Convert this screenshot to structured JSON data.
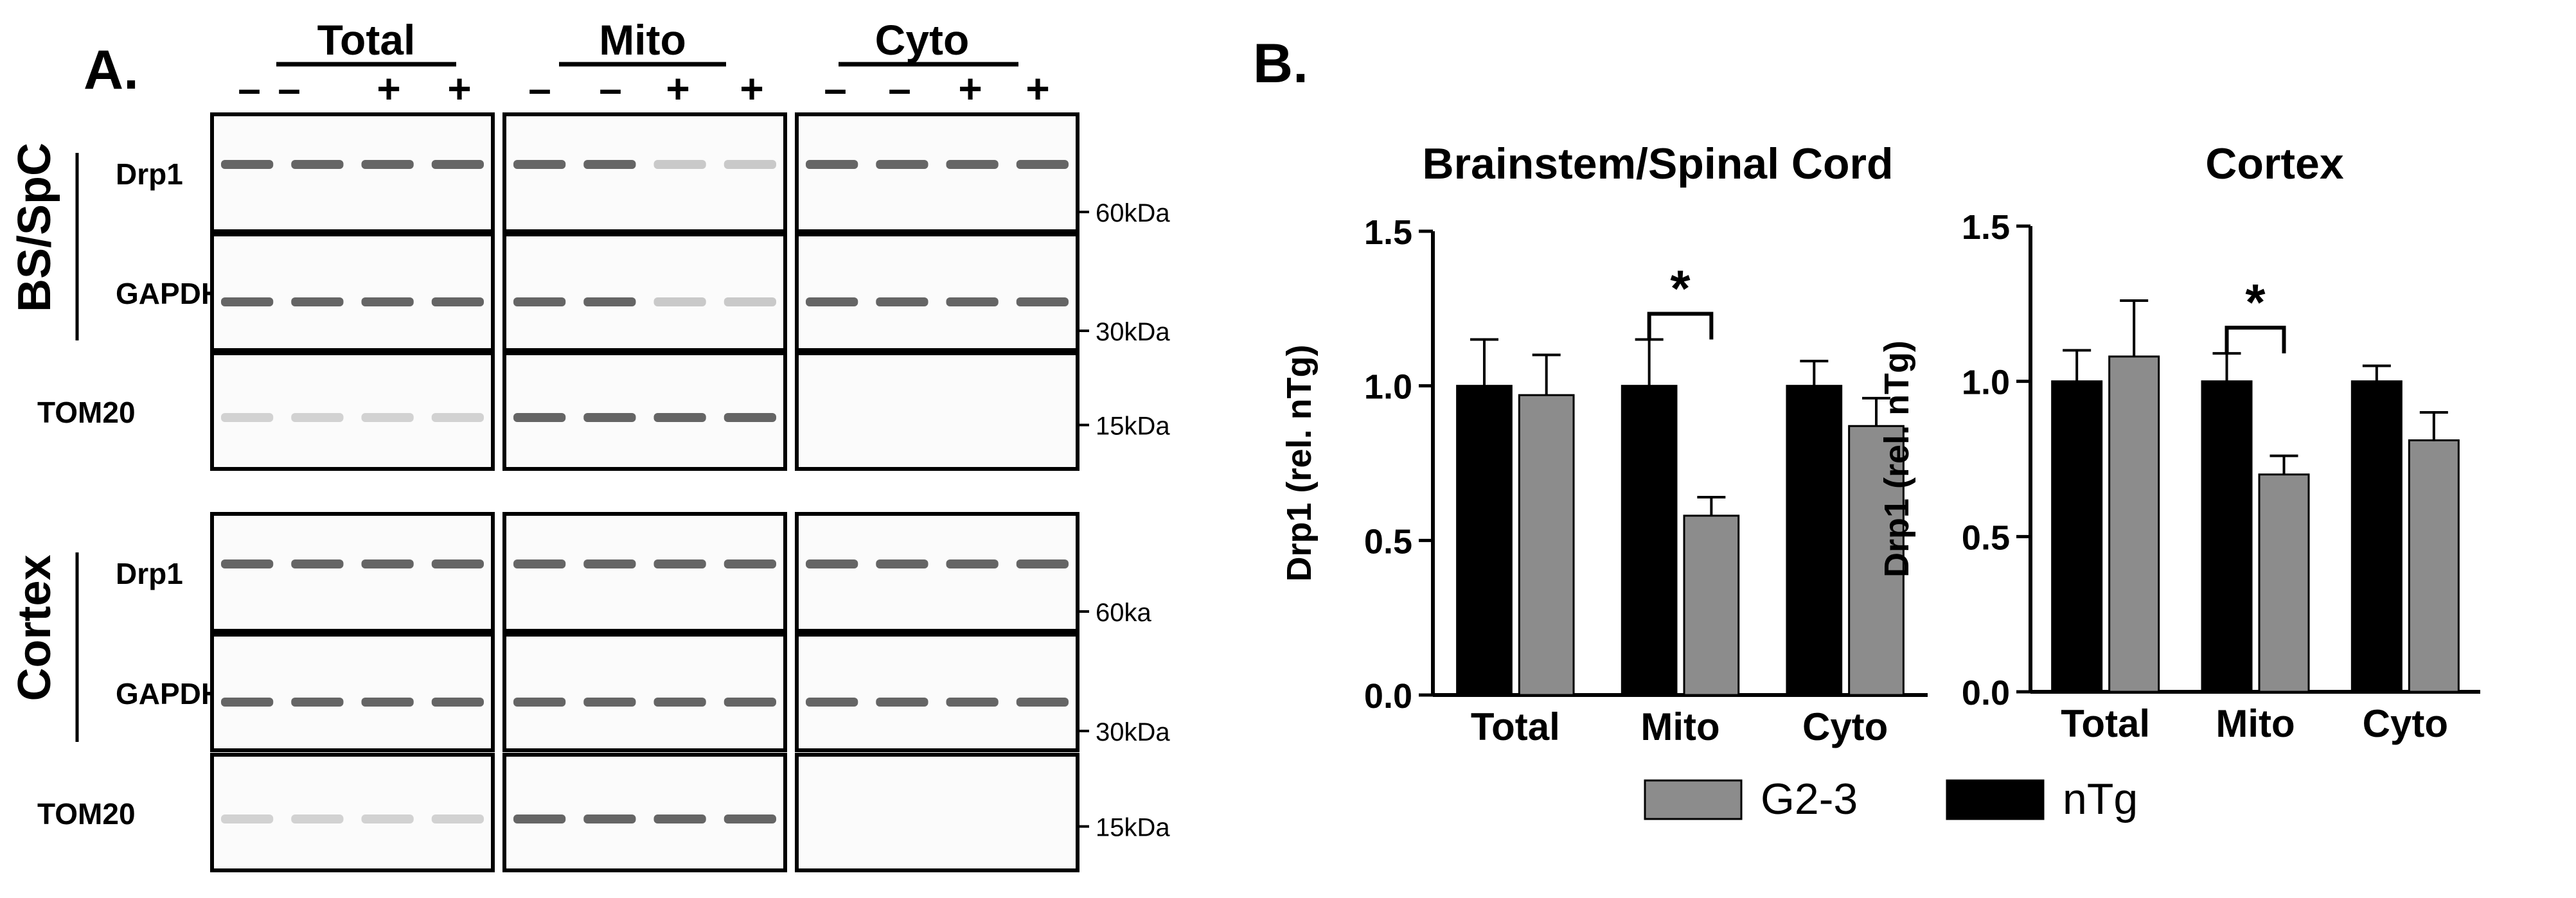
{
  "panel_a": {
    "label": "A.",
    "groups": [
      "Total",
      "Mito",
      "Cyto"
    ],
    "lane_signs": [
      "–",
      "–",
      "+",
      "+"
    ],
    "tissues": [
      {
        "name": "BS/SpC",
        "rows": [
          {
            "protein": "Drp1",
            "marker": "60kDa"
          },
          {
            "protein": "GAPDH",
            "marker": "30kDa"
          },
          {
            "protein": "TOM20",
            "marker": "15kDa"
          }
        ]
      },
      {
        "name": "Cortex",
        "rows": [
          {
            "protein": "Drp1",
            "marker": "60ka"
          },
          {
            "protein": "GAPDH",
            "marker": "30kDa"
          },
          {
            "protein": "TOM20",
            "marker": "15kDa"
          }
        ]
      }
    ]
  },
  "panel_b": {
    "label": "B.",
    "legend": [
      {
        "name": "G2-3",
        "color": "#8c8c8c"
      },
      {
        "name": "nTg",
        "color": "#000000"
      }
    ]
  },
  "chart_data": [
    {
      "type": "bar",
      "title": "Brainstem/Spinal Cord",
      "xlabel": "",
      "ylabel": "Drp1 (rel. nTg)",
      "ylim": [
        0,
        1.5
      ],
      "yticks": [
        "0.0",
        "0.5",
        "1.0",
        "1.5"
      ],
      "categories": [
        "Total",
        "Mito",
        "Cyto"
      ],
      "series": [
        {
          "name": "nTg",
          "color": "#000000",
          "values": [
            1.0,
            1.0,
            1.0
          ],
          "errors": [
            0.15,
            0.15,
            0.08
          ]
        },
        {
          "name": "G2-3",
          "color": "#8c8c8c",
          "values": [
            0.97,
            0.58,
            0.87
          ],
          "errors": [
            0.13,
            0.06,
            0.09
          ]
        }
      ],
      "significance": [
        {
          "category": "Mito",
          "label": "*"
        }
      ]
    },
    {
      "type": "bar",
      "title": "Cortex",
      "xlabel": "",
      "ylabel": "Drp1 (rel. nTg)",
      "ylim": [
        0,
        1.5
      ],
      "yticks": [
        "0.0",
        "0.5",
        "1.0",
        "1.5"
      ],
      "categories": [
        "Total",
        "Mito",
        "Cyto"
      ],
      "series": [
        {
          "name": "nTg",
          "color": "#000000",
          "values": [
            1.0,
            1.0,
            1.0
          ],
          "errors": [
            0.1,
            0.09,
            0.05
          ]
        },
        {
          "name": "G2-3",
          "color": "#8c8c8c",
          "values": [
            1.08,
            0.7,
            0.81
          ],
          "errors": [
            0.18,
            0.06,
            0.09
          ]
        }
      ],
      "significance": [
        {
          "category": "Mito",
          "label": "*"
        }
      ]
    }
  ]
}
